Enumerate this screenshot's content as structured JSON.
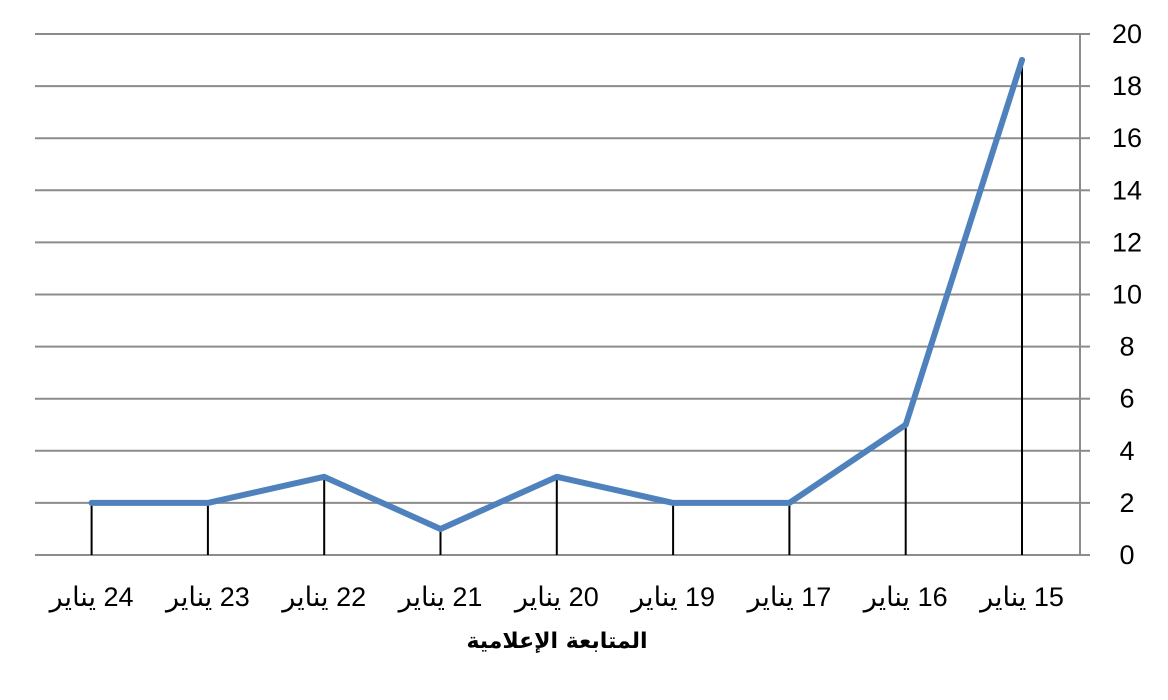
{
  "chart_data": {
    "type": "line",
    "title": "",
    "xlabel": "المتابعة الإعلامية",
    "ylabel": "",
    "categories": [
      "15 يناير",
      "16 يناير",
      "17 يناير",
      "19 يناير",
      "20 يناير",
      "21 يناير",
      "22 يناير",
      "23 يناير",
      "24 يناير"
    ],
    "category_order": "right-to-left",
    "series": [
      {
        "values": [
          19,
          5,
          2,
          2,
          3,
          1,
          3,
          2,
          2
        ]
      }
    ],
    "ylim": [
      0,
      20
    ],
    "yticks": [
      0,
      2,
      4,
      6,
      8,
      10,
      12,
      14,
      16,
      18,
      20
    ],
    "y_axis_position": "right",
    "grid": true,
    "legend": "none",
    "drop_lines": true,
    "colors": {
      "series": "#4f81bd",
      "grid": "#8c8c8c",
      "drop": "#000000"
    }
  }
}
